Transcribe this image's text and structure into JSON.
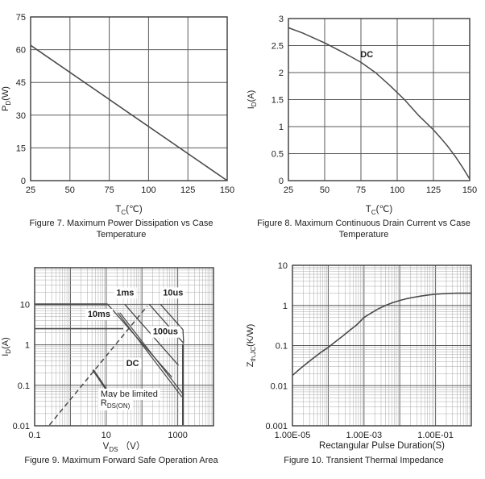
{
  "colors": {
    "frame": "#3a3a3a",
    "grid": "#5a5a5a",
    "grid_minor": "#a9a9a9",
    "curve": "#4a4a4a",
    "text": "#1e1e1e",
    "label_bg": "#ffffff"
  },
  "chart_data": [
    {
      "id": "figure7",
      "type": "line",
      "caption": "Figure 7. Maximum Power Dissipation vs Case Temperature",
      "xlabel": [
        {
          "t": "T"
        },
        {
          "t": "C",
          "sub": true
        },
        {
          "t": "(℃)"
        }
      ],
      "ylabel": [
        {
          "t": "P"
        },
        {
          "t": "D",
          "sub": true
        },
        {
          "t": "(W)"
        }
      ],
      "x": {
        "scale": "linear",
        "min": 25,
        "max": 150,
        "ticks": [
          {
            "v": 25,
            "l": "25"
          },
          {
            "v": 50,
            "l": "50"
          },
          {
            "v": 75,
            "l": "75"
          },
          {
            "v": 100,
            "l": "100"
          },
          {
            "v": 125,
            "l": "125"
          },
          {
            "v": 150,
            "l": "150"
          }
        ]
      },
      "y": {
        "scale": "linear",
        "min": 0,
        "max": 75,
        "ticks": [
          {
            "v": 0,
            "l": "0"
          },
          {
            "v": 15,
            "l": "15"
          },
          {
            "v": 30,
            "l": "30"
          },
          {
            "v": 45,
            "l": "45"
          },
          {
            "v": 60,
            "l": "60"
          },
          {
            "v": 75,
            "l": "75"
          }
        ]
      },
      "series": [
        {
          "name": "power-derating-line",
          "width": 1.6,
          "points": [
            [
              25,
              62
            ],
            [
              150,
              0
            ]
          ]
        }
      ],
      "labels": []
    },
    {
      "id": "figure8",
      "type": "line",
      "caption": "Figure 8. Maximum Continuous Drain Current vs Case Temperature",
      "xlabel": [
        {
          "t": "T"
        },
        {
          "t": "C",
          "sub": true
        },
        {
          "t": "(℃)"
        }
      ],
      "ylabel": [
        {
          "t": "I"
        },
        {
          "t": "D",
          "sub": true
        },
        {
          "t": "(A)"
        }
      ],
      "x": {
        "scale": "linear",
        "min": 25,
        "max": 150,
        "ticks": [
          {
            "v": 25,
            "l": "25"
          },
          {
            "v": 50,
            "l": "50"
          },
          {
            "v": 75,
            "l": "75"
          },
          {
            "v": 100,
            "l": "100"
          },
          {
            "v": 125,
            "l": "125"
          },
          {
            "v": 150,
            "l": "150"
          }
        ]
      },
      "y": {
        "scale": "linear",
        "min": 0,
        "max": 3,
        "ticks": [
          {
            "v": 0,
            "l": "0"
          },
          {
            "v": 0.5,
            "l": "0.5"
          },
          {
            "v": 1,
            "l": "1"
          },
          {
            "v": 1.5,
            "l": "1.5"
          },
          {
            "v": 2,
            "l": "2"
          },
          {
            "v": 2.5,
            "l": "2.5"
          },
          {
            "v": 3,
            "l": "3"
          }
        ]
      },
      "series": [
        {
          "name": "dc-drain-current-curve",
          "width": 1.5,
          "points": [
            [
              25,
              2.83
            ],
            [
              35,
              2.73
            ],
            [
              45,
              2.61
            ],
            [
              50,
              2.55
            ],
            [
              55,
              2.48
            ],
            [
              65,
              2.34
            ],
            [
              75,
              2.19
            ],
            [
              85,
              2.0
            ],
            [
              95,
              1.76
            ],
            [
              100,
              1.63
            ],
            [
              105,
              1.5
            ],
            [
              115,
              1.2
            ],
            [
              125,
              0.94
            ],
            [
              130,
              0.79
            ],
            [
              135,
              0.63
            ],
            [
              140,
              0.45
            ],
            [
              145,
              0.25
            ],
            [
              150,
              0.03
            ]
          ]
        }
      ],
      "labels": [
        {
          "segs": [
            {
              "t": "DC"
            }
          ],
          "x": 79,
          "y": 2.28,
          "bold": true,
          "bg": false,
          "anchor": "middle"
        }
      ]
    },
    {
      "id": "figure9",
      "type": "line",
      "caption": "Figure 9. Maximum Forward Safe Operation Area",
      "xlabel": [
        {
          "t": "V"
        },
        {
          "t": "DS",
          "sub": true
        },
        {
          "t": " （V）"
        }
      ],
      "ylabel": [
        {
          "t": "I"
        },
        {
          "t": "D",
          "sub": true
        },
        {
          "t": "(A)"
        }
      ],
      "x": {
        "scale": "log",
        "min": 0.1,
        "max": 10000,
        "ticks": [
          {
            "v": 0.1,
            "l": "0.1"
          },
          {
            "v": 10,
            "l": "10"
          },
          {
            "v": 1000,
            "l": "1000"
          }
        ]
      },
      "y": {
        "scale": "log",
        "min": 0.01,
        "max": 80,
        "ticks": [
          {
            "v": 0.01,
            "l": "0.01"
          },
          {
            "v": 0.1,
            "l": "0.1"
          },
          {
            "v": 1,
            "l": "1"
          },
          {
            "v": 10,
            "l": "10"
          }
        ]
      },
      "series": [
        {
          "name": "pulsed-current-limit",
          "width": 2.2,
          "points": [
            [
              0.104,
              10
            ],
            [
              11,
              10
            ]
          ]
        },
        {
          "name": "dc-current-limit",
          "width": 1.6,
          "points": [
            [
              0.104,
              2.5
            ],
            [
              30,
              2.5
            ]
          ]
        },
        {
          "name": "soa-10ms-line",
          "width": 1.3,
          "points": [
            [
              11,
              10
            ],
            [
              680,
              0.16
            ]
          ]
        },
        {
          "name": "soa-dc-line-a",
          "width": 1.2,
          "points": [
            [
              21,
              6.2
            ],
            [
              1300,
              0.052
            ]
          ]
        },
        {
          "name": "soa-dc-line-b",
          "width": 1.2,
          "points": [
            [
              24,
              6.2
            ],
            [
              1480,
              0.057
            ]
          ]
        },
        {
          "name": "soa-1ms-line",
          "width": 1.3,
          "points": [
            [
              33,
              10
            ],
            [
              1050,
              0.31
            ]
          ]
        },
        {
          "name": "soa-100us-line",
          "width": 1.3,
          "points": [
            [
              160,
              10
            ],
            [
              1480,
              1.08
            ]
          ]
        },
        {
          "name": "soa-10us-line",
          "width": 1.3,
          "points": [
            [
              330,
              10
            ],
            [
              1400,
              2.36
            ],
            [
              1460,
              1.15
            ]
          ]
        },
        {
          "name": "voltage-limit-line",
          "width": 2.2,
          "points": [
            [
              1400,
              1.05
            ],
            [
              1400,
              0.0104
            ]
          ]
        },
        {
          "name": "rdson-limit-dashed",
          "width": 1.5,
          "dash": "6,4",
          "points": [
            [
              0.26,
              0.0105
            ],
            [
              140,
              9
            ]
          ]
        },
        {
          "name": "rdson-callout-line",
          "width": 2.4,
          "points": [
            [
              4.3,
              0.24
            ],
            [
              10,
              0.08
            ]
          ]
        }
      ],
      "labels": [
        {
          "segs": [
            {
              "t": "10ms"
            }
          ],
          "x": 6.3,
          "y": 4.9,
          "bold": true,
          "bg": true,
          "anchor": "middle"
        },
        {
          "segs": [
            {
              "t": "1ms"
            }
          ],
          "x": 34,
          "y": 16.5,
          "bold": true,
          "bg": true,
          "anchor": "middle"
        },
        {
          "segs": [
            {
              "t": "10us"
            }
          ],
          "x": 740,
          "y": 16.5,
          "bold": true,
          "bg": true,
          "anchor": "middle"
        },
        {
          "segs": [
            {
              "t": "100us"
            }
          ],
          "x": 455,
          "y": 1.8,
          "bold": true,
          "bg": true,
          "anchor": "middle"
        },
        {
          "segs": [
            {
              "t": "DC"
            }
          ],
          "x": 55,
          "y": 0.3,
          "bold": true,
          "bg": true,
          "anchor": "middle"
        },
        {
          "segs": [
            {
              "t": "May be limited"
            }
          ],
          "x": 7,
          "y": 0.052,
          "bold": false,
          "bg": true,
          "anchor": "start"
        },
        {
          "segs": [
            {
              "t": "R"
            },
            {
              "t": "DS(ON)",
              "sub": true
            }
          ],
          "x": 7,
          "y": 0.0315,
          "bold": false,
          "bg": true,
          "anchor": "start"
        }
      ]
    },
    {
      "id": "figure10",
      "type": "line",
      "caption": "Figure 10. Transient Thermal Impedance",
      "xlabel": [
        {
          "t": "Rectangular Pulse Duration(S)"
        }
      ],
      "ylabel": [
        {
          "t": "Z"
        },
        {
          "t": "th,JC",
          "sub": true
        },
        {
          "t": "(K/W)"
        }
      ],
      "x": {
        "scale": "log",
        "min": 1e-05,
        "max": 1,
        "ticks": [
          {
            "v": 1e-05,
            "l": "1.00E-05"
          },
          {
            "v": 0.001,
            "l": "1.00E-03"
          },
          {
            "v": 0.1,
            "l": "1.00E-01"
          }
        ]
      },
      "y": {
        "scale": "log",
        "min": 0.001,
        "max": 10,
        "ticks": [
          {
            "v": 0.001,
            "l": "0.001"
          },
          {
            "v": 0.01,
            "l": "0.01"
          },
          {
            "v": 0.1,
            "l": "0.1"
          },
          {
            "v": 1,
            "l": "1"
          },
          {
            "v": 10,
            "l": "10"
          }
        ]
      },
      "series": [
        {
          "name": "transient-thermal-impedance-curve",
          "width": 1.6,
          "points": [
            [
              1e-05,
              0.018
            ],
            [
              1.6e-05,
              0.026
            ],
            [
              2.5e-05,
              0.036
            ],
            [
              4e-05,
              0.05
            ],
            [
              6.3e-05,
              0.068
            ],
            [
              0.0001,
              0.09
            ],
            [
              0.00016,
              0.125
            ],
            [
              0.00025,
              0.17
            ],
            [
              0.0004,
              0.24
            ],
            [
              0.00063,
              0.33
            ],
            [
              0.001,
              0.5
            ],
            [
              0.0016,
              0.65
            ],
            [
              0.0025,
              0.82
            ],
            [
              0.004,
              1.0
            ],
            [
              0.0063,
              1.17
            ],
            [
              0.01,
              1.33
            ],
            [
              0.016,
              1.48
            ],
            [
              0.025,
              1.6
            ],
            [
              0.04,
              1.72
            ],
            [
              0.063,
              1.82
            ],
            [
              0.1,
              1.9
            ],
            [
              0.16,
              1.96
            ],
            [
              0.25,
              2.0
            ],
            [
              0.4,
              2.02
            ],
            [
              0.63,
              2.02
            ],
            [
              1,
              2.02
            ]
          ]
        }
      ],
      "labels": []
    }
  ]
}
